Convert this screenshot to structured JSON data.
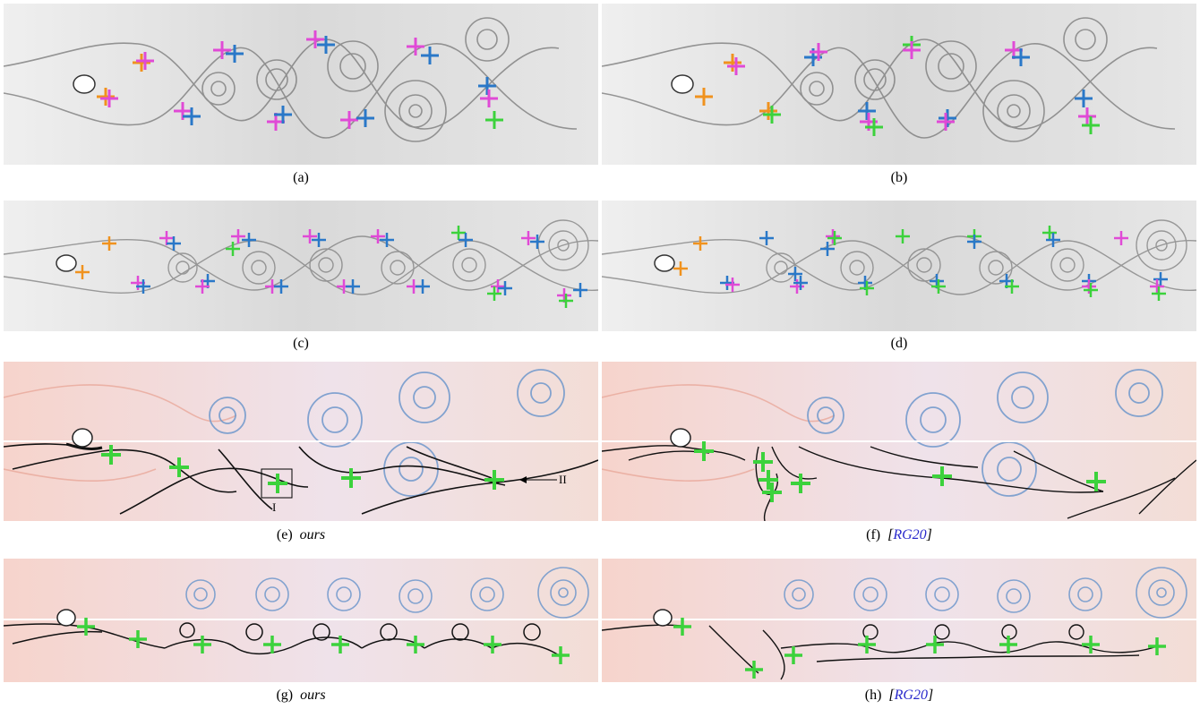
{
  "captions": {
    "a": {
      "label": "(a)"
    },
    "b": {
      "label": "(b)"
    },
    "c": {
      "label": "(c)"
    },
    "d": {
      "label": "(d)"
    },
    "e": {
      "label": "(e)",
      "note": "ours"
    },
    "f": {
      "label": "(f)",
      "note_open": "[",
      "cite": "RG20",
      "note_close": "]"
    },
    "g": {
      "label": "(g)",
      "note": "ours"
    },
    "h": {
      "label": "(h)",
      "note_open": "[",
      "cite": "RG20",
      "note_close": "]"
    }
  },
  "annotations": {
    "box_label": "I",
    "arrow_label": "II"
  },
  "colors": {
    "marker_orange": "#f0921e",
    "marker_magenta": "#e04ad6",
    "marker_blue": "#2a78c8",
    "marker_green": "#3cd23c",
    "citation": "#2a2acc"
  }
}
